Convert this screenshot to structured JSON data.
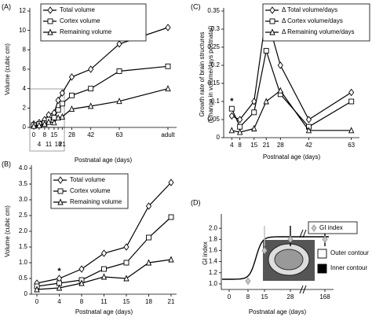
{
  "chart_data": [
    {
      "type": "line",
      "panel": "(A)",
      "x_label": "Postnatal age (days)",
      "y_label": "Volume (cubic cm)",
      "categories": [
        "0",
        "4",
        "8",
        "11",
        "15",
        "18",
        "21",
        "28",
        "42",
        "63",
        "adult"
      ],
      "series": [
        {
          "name": "Total volume",
          "color": "#000000",
          "marker": "diamond",
          "values": [
            0.35,
            0.5,
            0.8,
            1.3,
            1.5,
            2.8,
            3.55,
            5.2,
            6.0,
            8.6,
            10.3
          ]
        },
        {
          "name": "Cortex volume",
          "color": "#000000",
          "marker": "square",
          "values": [
            0.25,
            0.35,
            0.45,
            0.8,
            1.0,
            1.8,
            2.45,
            3.3,
            4.0,
            5.8,
            6.3
          ]
        },
        {
          "name": "Remaining volume",
          "color": "#000000",
          "marker": "triangle",
          "values": [
            0.15,
            0.2,
            0.35,
            0.55,
            0.5,
            1.0,
            1.1,
            1.9,
            2.2,
            2.7,
            4.0
          ]
        }
      ],
      "ylim": [
        0,
        12
      ],
      "yticks": [
        0,
        2,
        4,
        6,
        8,
        10,
        12
      ],
      "legend": "top-left"
    },
    {
      "type": "line",
      "panel": "(B)",
      "x_label": "Postnatal age (days)",
      "y_label": "Volume (cubic cm)",
      "categories": [
        "0",
        "4",
        "8",
        "11",
        "15",
        "18",
        "21"
      ],
      "series": [
        {
          "name": "Total volume",
          "color": "#000000",
          "marker": "diamond",
          "values": [
            0.35,
            0.5,
            0.8,
            1.3,
            1.5,
            2.8,
            3.55
          ]
        },
        {
          "name": "Cortex volume",
          "color": "#000000",
          "marker": "square",
          "values": [
            0.25,
            0.35,
            0.45,
            0.8,
            1.0,
            1.8,
            2.45
          ]
        },
        {
          "name": "Remaining volume",
          "color": "#000000",
          "marker": "triangle",
          "values": [
            0.15,
            0.2,
            0.35,
            0.55,
            0.5,
            1.0,
            1.1
          ]
        }
      ],
      "ylim": [
        0,
        4
      ],
      "yticks": [
        0,
        0.5,
        {
          "value": 1,
          "label": "1.0"
        },
        1.5,
        {
          "value": 2,
          "label": "2.0"
        },
        2.5,
        {
          "value": 3,
          "label": "3.0"
        },
        3.5,
        {
          "value": 4,
          "label": "4.0"
        }
      ],
      "annotations": [
        {
          "text": "*",
          "x": "4"
        }
      ],
      "legend": "top-left"
    },
    {
      "type": "line",
      "panel": "(C)",
      "x_label": "Postnatal age (days)",
      "y_label": [
        "Growth rate of brain structures",
        "(Change in volume/days postnatal)"
      ],
      "x": [
        4,
        8,
        15,
        21,
        28,
        42,
        63
      ],
      "xlim": [
        0,
        67
      ],
      "xticks": [
        4,
        8,
        15,
        21,
        28,
        42,
        63
      ],
      "series": [
        {
          "name": "Δ Total volume/days",
          "color": "#000000",
          "marker": "diamond",
          "values": [
            0.06,
            0.05,
            0.1,
            0.34,
            0.2,
            0.05,
            0.125
          ]
        },
        {
          "name": "Δ Cortex volume/days",
          "color": "#000000",
          "marker": "square",
          "values": [
            0.08,
            0.03,
            0.07,
            0.24,
            0.12,
            0.03,
            0.1
          ]
        },
        {
          "name": "Δ Remaining volume/days",
          "color": "#000000",
          "marker": "triangle",
          "values": [
            0.02,
            0.015,
            0.025,
            0.1,
            0.13,
            0.02,
            0.02
          ]
        }
      ],
      "ylim": [
        0,
        0.35
      ],
      "yticks": [
        0,
        0.05,
        0.1,
        0.15,
        0.2,
        0.25,
        0.3,
        0.35
      ],
      "annotations": [
        {
          "text": "*",
          "x": 4
        }
      ],
      "legend": "top-right"
    },
    {
      "type": "scatter",
      "panel": "(D)",
      "x_label": "Postnatal age (days)",
      "y_label": "GI index",
      "categories": [
        "0",
        "8",
        "15",
        "28",
        "168"
      ],
      "series": [
        {
          "name": "GI index",
          "color": "#c8c8c8",
          "marker": "diamond",
          "values": [
            null,
            1.05,
            1.6,
            1.8,
            1.8
          ]
        }
      ],
      "ylim": [
        0.9,
        2.2
      ],
      "yticks": [
        {
          "value": 1,
          "label": "1.0"
        },
        1.2,
        1.4,
        1.6,
        1.8,
        {
          "value": 2,
          "label": "2.0"
        }
      ],
      "contour_legend": [
        {
          "label": "Outer contour",
          "color": "#ffffff"
        },
        {
          "label": "Inner contour",
          "color": "#000000"
        }
      ],
      "legend": "top-right"
    }
  ]
}
